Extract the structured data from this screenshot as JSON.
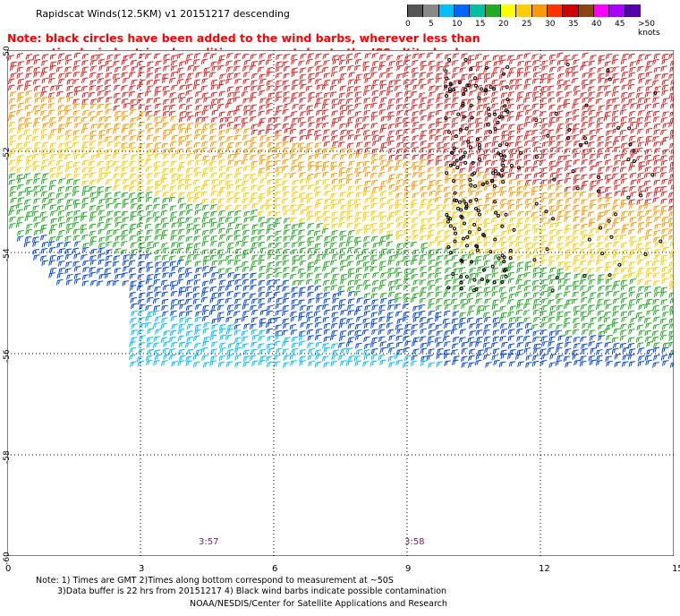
{
  "title": "Rapidscat Winds(12.5KM) v1 20151217 descending",
  "note_line1": "Note: black circles have been added to the wind barbs, wherever less than",
  "note_line2": "optimal wind retrieval conditions are met due to the ISS altitude changes.",
  "legend": {
    "labels": [
      "0",
      "5",
      "10",
      "15",
      "20",
      "25",
      "30",
      "35",
      "40",
      "45",
      ">50 knots"
    ],
    "colors": [
      "#555555",
      "#888888",
      "#00bfff",
      "#0066ff",
      "#00c0a0",
      "#22aa22",
      "#ffff00",
      "#ffcc00",
      "#ff9900",
      "#ff3300",
      "#cc0000",
      "#8b4513",
      "#ff00ff",
      "#aa00ff",
      "#5500aa"
    ]
  },
  "axes": {
    "y_labels": [
      "-50",
      "-52",
      "-54",
      "-56",
      "-58",
      "-60"
    ],
    "x_labels": [
      "0",
      "3",
      "6",
      "9",
      "12",
      "15"
    ]
  },
  "time_labels": [
    "3:57",
    "3:58"
  ],
  "footer": {
    "line1": "Note: 1) Times are GMT 2)Times along bottom correspond to measurement at ~50S",
    "line2": "3)Data buffer is 22 hrs from 20151217 4) Black wind barbs indicate possible contamination",
    "line3": "NOAA/NESDIS/Center for Satellite Applications and Research"
  }
}
